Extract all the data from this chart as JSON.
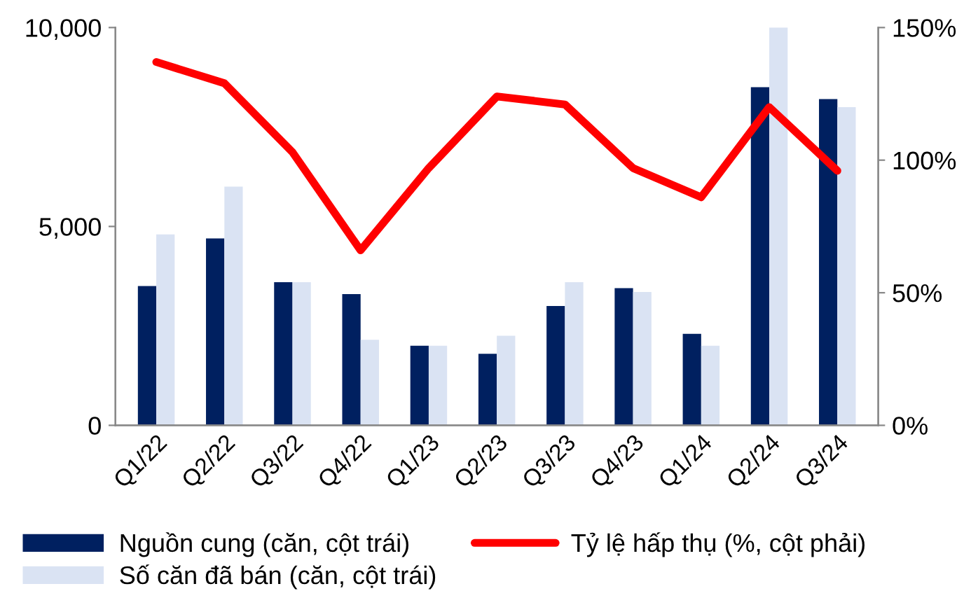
{
  "chart_data": {
    "type": "bar",
    "categories": [
      "Q1/22",
      "Q2/22",
      "Q3/22",
      "Q4/22",
      "Q1/23",
      "Q2/23",
      "Q3/23",
      "Q4/23",
      "Q1/24",
      "Q2/24",
      "Q3/24"
    ],
    "series": [
      {
        "name": "Nguồn cung (căn, cột trái)",
        "color": "#002060",
        "values": [
          3500,
          4700,
          3600,
          3300,
          2000,
          1800,
          3000,
          3450,
          2300,
          8500,
          8200
        ]
      },
      {
        "name": "Số căn đã bán (căn, cột trái)",
        "color": "#dae3f3",
        "values": [
          4800,
          6000,
          3600,
          2150,
          2000,
          2250,
          3600,
          3350,
          2000,
          10000,
          8000
        ]
      },
      {
        "name": "Tỷ lệ hấp thụ (%, cột phải)",
        "color": "#ff0000",
        "type": "line",
        "axis": "y2",
        "values": [
          137,
          129,
          103,
          66,
          97,
          124,
          121,
          97,
          86,
          120,
          96
        ]
      }
    ],
    "ylim": [
      0,
      10000
    ],
    "yticks": [
      {
        "value": 0,
        "label": "0"
      },
      {
        "value": 5000,
        "label": "5,000"
      },
      {
        "value": 10000,
        "label": "10,000"
      }
    ],
    "y2lim": [
      0,
      150
    ],
    "y2ticks": [
      {
        "value": 0,
        "label": "0%"
      },
      {
        "value": 50,
        "label": "50%"
      },
      {
        "value": 100,
        "label": "100%"
      },
      {
        "value": 150,
        "label": "150%"
      }
    ],
    "grid": false,
    "legend": "bottom"
  }
}
